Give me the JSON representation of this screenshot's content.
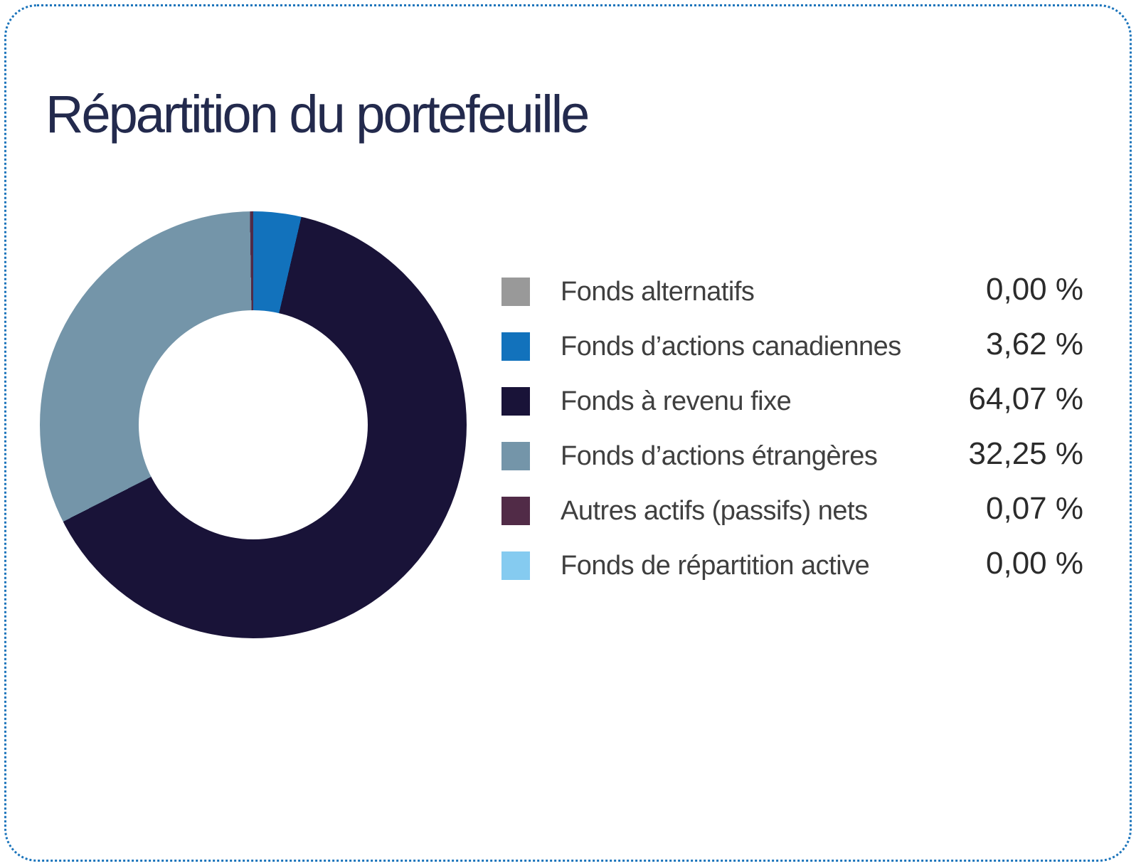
{
  "page": {
    "title": "Répartition du portefeuille"
  },
  "colors": {
    "card_border": "#1b74bb",
    "title_text": "#232a4d",
    "legend_label_text": "#3f3f3f",
    "legend_value_text": "#2b2b2b",
    "background": "#ffffff"
  },
  "chart_data": {
    "type": "pie",
    "variant": "donut",
    "title": "Répartition du portefeuille",
    "legend_position": "right",
    "start_angle": "top",
    "direction": "clockwise",
    "inner_radius_ratio": 0.54,
    "series": [
      {
        "name": "Fonds alternatifs",
        "value": 0.0,
        "display": "0,00 %",
        "color": "#999999"
      },
      {
        "name": "Fonds d’actions canadiennes",
        "value": 3.62,
        "display": "3,62 %",
        "color": "#1272bc"
      },
      {
        "name": "Fonds à revenu fixe",
        "value": 64.07,
        "display": "64,07 %",
        "color": "#191338"
      },
      {
        "name": "Fonds d’actions étrangères",
        "value": 32.25,
        "display": "32,25 %",
        "color": "#7495a9"
      },
      {
        "name": "Autres actifs (passifs) nets",
        "value": 0.07,
        "display": "0,07 %",
        "color": "#512b47"
      },
      {
        "name": "Fonds de répartition active",
        "value": 0.0,
        "display": "0,00 %",
        "color": "#85cbf0"
      }
    ]
  }
}
